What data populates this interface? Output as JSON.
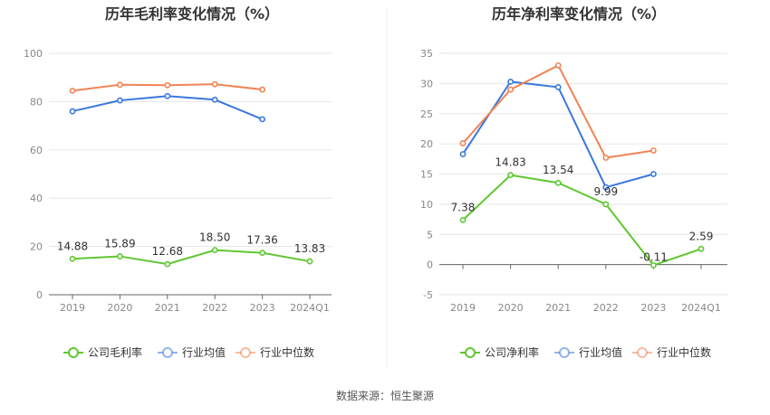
{
  "source_text": "数据来源：恒生聚源",
  "chart_data": [
    {
      "type": "line",
      "title": "历年毛利率变化情况（%）",
      "categories": [
        "2019",
        "2020",
        "2021",
        "2022",
        "2023",
        "2024Q1"
      ],
      "ylim": [
        0,
        100
      ],
      "yticks": [
        0,
        20,
        40,
        60,
        80,
        100
      ],
      "grid": true,
      "legend_position": "bottom",
      "series": [
        {
          "name": "公司毛利率",
          "color": "#5ec730",
          "values": [
            14.88,
            15.89,
            12.68,
            18.5,
            17.36,
            13.83
          ],
          "labels": [
            "14.88",
            "15.89",
            "12.68",
            "18.50",
            "17.36",
            "13.83"
          ]
        },
        {
          "name": "行业均值",
          "color": "#3a78dc",
          "values": [
            76.0,
            80.5,
            82.3,
            80.8,
            72.7,
            null
          ]
        },
        {
          "name": "行业中位数",
          "color": "#f08456",
          "values": [
            84.5,
            87.0,
            86.8,
            87.2,
            85.0,
            null
          ]
        }
      ]
    },
    {
      "type": "line",
      "title": "历年净利率变化情况（%）",
      "categories": [
        "2019",
        "2020",
        "2021",
        "2022",
        "2023",
        "2024Q1"
      ],
      "ylim": [
        -5,
        35
      ],
      "yticks": [
        -5,
        0,
        5,
        10,
        15,
        20,
        25,
        30,
        35
      ],
      "grid": true,
      "legend_position": "bottom",
      "series": [
        {
          "name": "公司净利率",
          "color": "#5ec730",
          "values": [
            7.38,
            14.83,
            13.54,
            9.99,
            -0.11,
            2.59
          ],
          "labels": [
            "7.38",
            "14.83",
            "13.54",
            "9.99",
            "-0.11",
            "2.59"
          ]
        },
        {
          "name": "行业均值",
          "color": "#3a78dc",
          "values": [
            18.3,
            30.3,
            29.4,
            12.8,
            15.0,
            null
          ]
        },
        {
          "name": "行业中位数",
          "color": "#f08456",
          "values": [
            20.1,
            29.0,
            33.0,
            17.7,
            18.9,
            null
          ]
        }
      ]
    }
  ]
}
